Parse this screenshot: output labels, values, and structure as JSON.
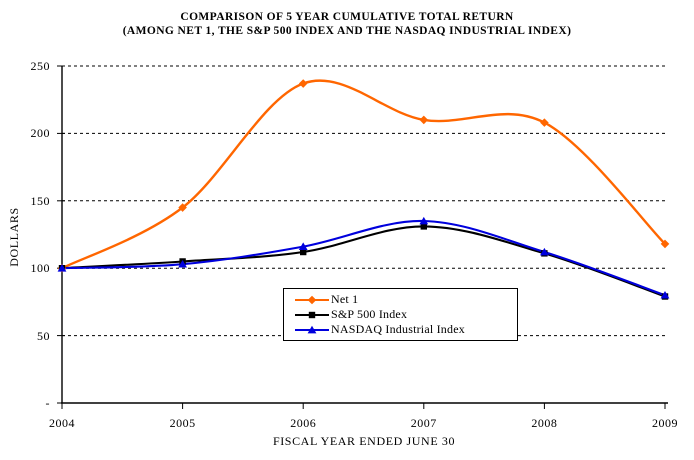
{
  "title": "COMPARISON OF 5 YEAR CUMULATIVE TOTAL RETURN",
  "subtitle": "(AMONG NET 1, THE S&P 500 INDEX AND THE NASDAQ INDUSTRIAL INDEX)",
  "chart_data": {
    "type": "line",
    "smoothed": true,
    "title": "COMPARISON OF 5 YEAR CUMULATIVE TOTAL RETURN (AMONG NET 1, THE S&P 500 INDEX AND THE NASDAQ INDUSTRIAL INDEX)",
    "xlabel": "FISCAL YEAR ENDED JUNE 30",
    "ylabel": "DOLLARS",
    "x_tick_labels": [
      "2004",
      "2005",
      "2006",
      "2007",
      "2008",
      "2009"
    ],
    "y_ticks": [
      0,
      50,
      100,
      150,
      200,
      250
    ],
    "y_tick_labels": [
      "-",
      "50",
      "100",
      "150",
      "200",
      "250"
    ],
    "ylim": [
      0,
      250
    ],
    "grid": "horizontal-dashed",
    "legend_position": "bottom-center-box",
    "series": [
      {
        "name": "Net 1",
        "color": "#FF6600",
        "marker": "diamond",
        "values": [
          100,
          145,
          237,
          210,
          208,
          118
        ]
      },
      {
        "name": "S&P 500 Index",
        "color": "#000000",
        "marker": "square",
        "values": [
          100,
          105,
          112,
          131,
          111,
          79
        ]
      },
      {
        "name": "NASDAQ Industrial Index",
        "color": "#0000DD",
        "marker": "triangle",
        "values": [
          100,
          103,
          116,
          135,
          112,
          80
        ]
      }
    ]
  }
}
